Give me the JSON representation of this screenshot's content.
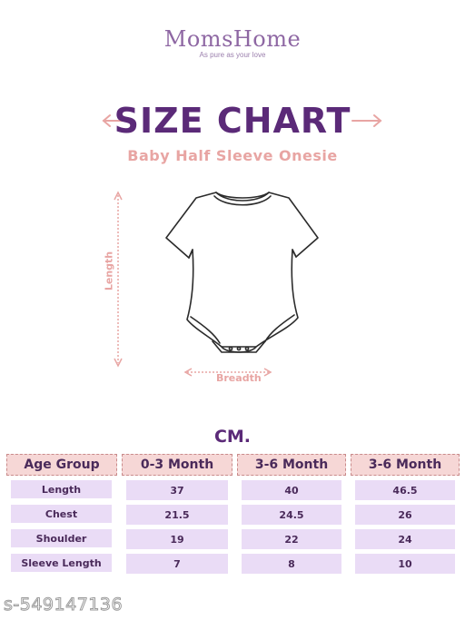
{
  "brand": {
    "name": "MomsHome",
    "tagline": "As pure as your love",
    "colors": {
      "primary": "#5b2a78",
      "accent": "#e8a5a3",
      "cell": "#eadcf6",
      "header": "#f6d7d6"
    }
  },
  "title": "SIZE CHART",
  "subtitle": "Baby Half Sleeve Onesie",
  "diagram": {
    "length_label": "Length",
    "breadth_label": "Breadth"
  },
  "unit": "CM.",
  "table": {
    "headers": [
      "Age Group",
      "0-3 Month",
      "3-6 Month",
      "3-6 Month"
    ],
    "rows": [
      {
        "label": "Length",
        "values": [
          "37",
          "40",
          "46.5"
        ]
      },
      {
        "label": "Chest",
        "values": [
          "21.5",
          "24.5",
          "26"
        ]
      },
      {
        "label": "Shoulder",
        "values": [
          "19",
          "22",
          "24"
        ]
      },
      {
        "label": "Sleeve Length",
        "values": [
          "7",
          "8",
          "10"
        ]
      }
    ]
  },
  "watermark": "s-549147136"
}
